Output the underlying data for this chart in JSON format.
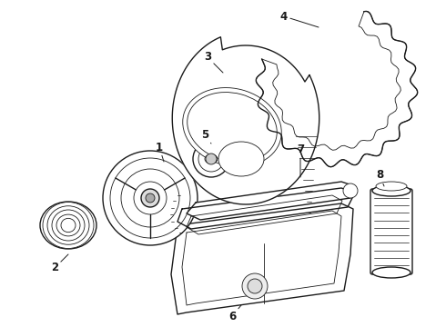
{
  "bg_color": "#ffffff",
  "line_color": "#1a1a1a",
  "lw": 1.0,
  "tlw": 0.6,
  "fig_width": 4.9,
  "fig_height": 3.6,
  "dpi": 100
}
